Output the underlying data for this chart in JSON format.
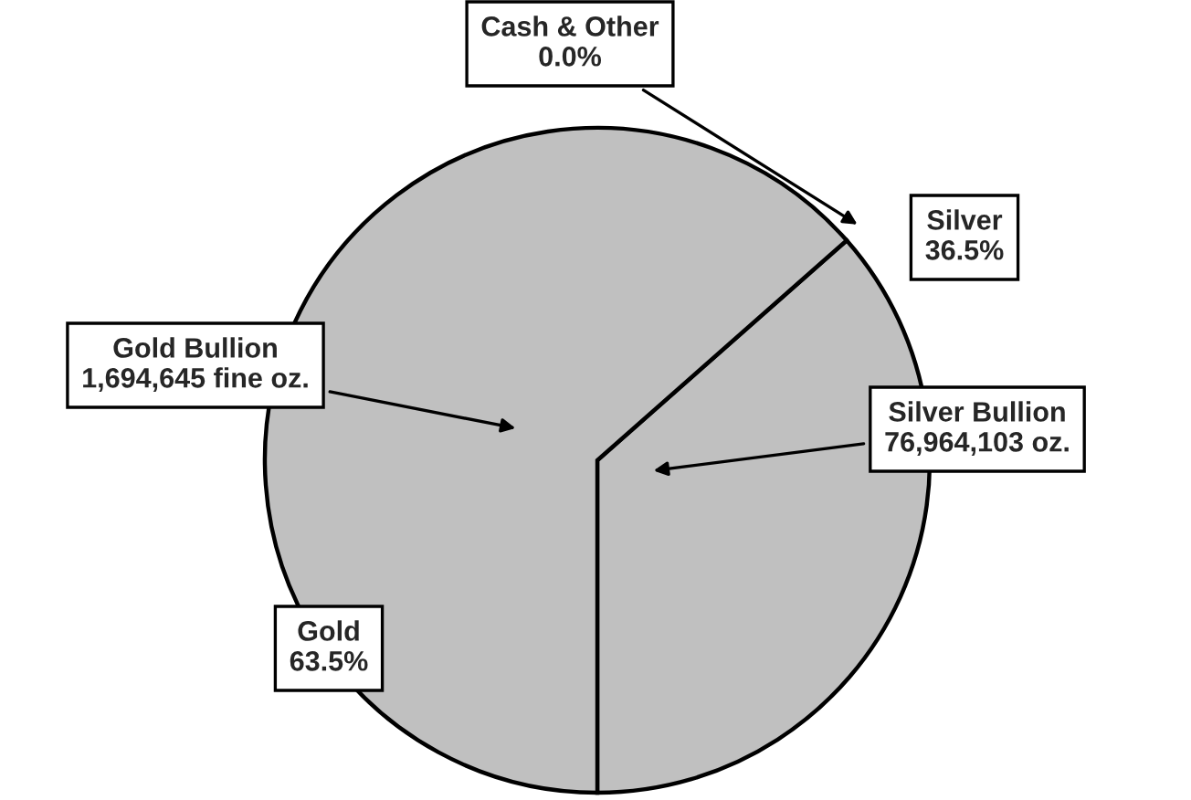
{
  "chart_data": {
    "type": "pie",
    "categories": [
      "Silver",
      "Cash & Other",
      "Gold"
    ],
    "values": [
      36.5,
      0.0,
      63.5
    ],
    "value_labels": [
      "36.5%",
      "0.0%",
      "63.5%"
    ],
    "colors": [
      "#c0c0c0",
      "#c0c0c0",
      "#c0c0c0"
    ],
    "annotations": [
      "Gold Bullion\n1,694,645 fine oz.",
      "Silver Bullion\n76,964,103 oz."
    ],
    "legend": false
  }
}
